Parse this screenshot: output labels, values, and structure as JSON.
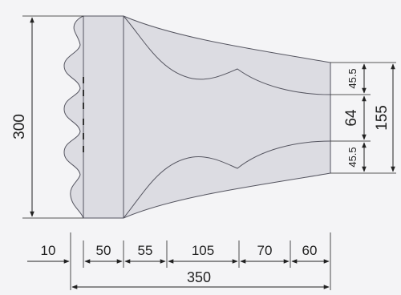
{
  "drawing": {
    "colors": {
      "background": "#f4f4f6",
      "body_fill": "#dcdce2",
      "stroke": "#555560",
      "dimension_line": "#222222"
    },
    "dimensions": {
      "overall_height": "300",
      "right_top": "45.5",
      "right_middle": "64",
      "right_bottom": "45.5",
      "right_total": "155",
      "seg_1": "10",
      "seg_2": "50",
      "seg_3": "55",
      "seg_4": "105",
      "seg_5": "70",
      "seg_6": "60",
      "overall_length": "350"
    }
  }
}
